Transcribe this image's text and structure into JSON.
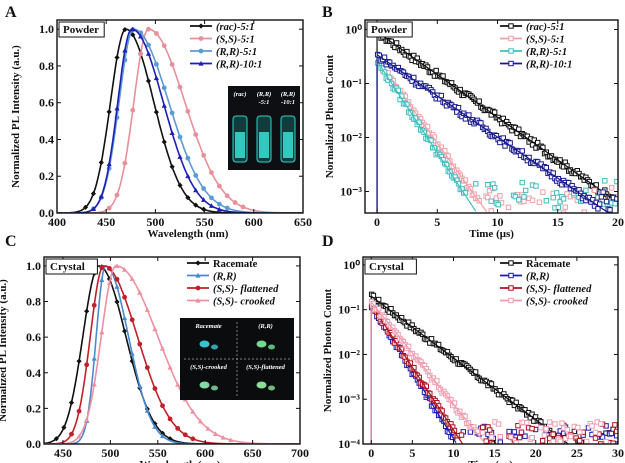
{
  "panels": [
    {
      "letter": "A",
      "tag": "Powder",
      "type": "line",
      "xlabel": "Wavelength (nm)",
      "ylabel": "Normalized PL Intensity (a.u.)",
      "xlim": [
        400,
        650
      ],
      "ylim": [
        0,
        1.05
      ],
      "xticks": [
        "400",
        "450",
        "500",
        "550",
        "600",
        "650"
      ],
      "yticks": [
        "0.0",
        "0.2",
        "0.4",
        "0.6",
        "0.8",
        "1.0"
      ],
      "yscale": "linear",
      "legend": "top-right",
      "series": [
        {
          "name": "(rac)-5:1",
          "color": "#111111",
          "marker": "diamond",
          "peak": 470,
          "wl": 22,
          "wr": 40
        },
        {
          "name": "(S,S)-5:1",
          "color": "#e8909a",
          "marker": "circle",
          "peak": 493,
          "wl": 21,
          "wr": 52
        },
        {
          "name": "(R,R)-5:1",
          "color": "#5b9bd5",
          "marker": "circle",
          "peak": 478,
          "wl": 21,
          "wr": 50
        },
        {
          "name": "(R,R)-10:1",
          "color": "#1f1fb4",
          "marker": "triangle",
          "peak": 476,
          "wl": 20,
          "wr": 45
        }
      ],
      "inset_labels": [
        "(rac)",
        "(R,R)\n-5:1",
        "(R,R)\n-10:1"
      ]
    },
    {
      "letter": "B",
      "tag": "Powder",
      "type": "line",
      "xlabel": "Time (μs)",
      "ylabel": "Normalized Photon Count",
      "xlim": [
        -1,
        20
      ],
      "ylim": [
        0.0004,
        1.5
      ],
      "xticks": [
        "0",
        "5",
        "10",
        "15",
        "20"
      ],
      "yticks": [
        "10⁰",
        "10⁻¹",
        "10⁻²",
        "10⁻³"
      ],
      "ytick_values": [
        1,
        0.1,
        0.01,
        0.001
      ],
      "yscale": "log",
      "legend": "top-right",
      "series": [
        {
          "name": "(rac)-5:1",
          "color": "#111111",
          "marker": "square-open",
          "tau": 2.75,
          "start": 0.9,
          "floor": 0.0005
        },
        {
          "name": "(S,S)-5:1",
          "color": "#f0a0a8",
          "marker": "square-open",
          "tau": 1.4,
          "start": 0.28,
          "floor": 0.0006
        },
        {
          "name": "(R,R)-5:1",
          "color": "#3fbfbf",
          "marker": "square-open",
          "tau": 1.28,
          "start": 0.26,
          "floor": 0.0008
        },
        {
          "name": "(R,R)-10:1",
          "color": "#1a1a90",
          "marker": "square-open",
          "tau": 2.85,
          "start": 0.34,
          "floor": 0.0005
        }
      ]
    },
    {
      "letter": "C",
      "tag": "Crystal",
      "type": "line",
      "xlabel": "Wavelength (nm)",
      "ylabel": "Normalized PL Intensity (a.u.)",
      "xlim": [
        430,
        700
      ],
      "ylim": [
        0,
        1.05
      ],
      "xticks": [
        "450",
        "500",
        "550",
        "600",
        "650",
        "700"
      ],
      "yticks": [
        "0.0",
        "0.2",
        "0.4",
        "0.6",
        "0.8",
        "1.0"
      ],
      "yscale": "linear",
      "legend": "top-right",
      "series": [
        {
          "name": "Racemate",
          "color": "#111111",
          "marker": "diamond",
          "peak": 488,
          "wl": 24,
          "wr": 40
        },
        {
          "name": "(R,R)",
          "color": "#4a8ad0",
          "marker": "triangle",
          "peak": 495,
          "wl": 14,
          "wr": 34
        },
        {
          "name": "(S,S)- flattened",
          "color": "#c0202a",
          "marker": "circle",
          "peak": 493,
          "wl": 20,
          "wr": 50
        },
        {
          "name": "(S,S)- crooked",
          "color": "#ef8fa0",
          "marker": "triangle",
          "peak": 506,
          "wl": 22,
          "wr": 62
        }
      ],
      "inset_labels": [
        "Racemate",
        "(R,R)",
        "(S,S)-crooked",
        "(S,S)-flattened"
      ]
    },
    {
      "letter": "D",
      "tag": "Crystal",
      "type": "line",
      "xlabel": "Time (μs)",
      "ylabel": "Normalized Photon Count",
      "xlim": [
        -1,
        30
      ],
      "ylim": [
        0.0001,
        1.5
      ],
      "xticks": [
        "0",
        "5",
        "10",
        "15",
        "20",
        "25",
        "30"
      ],
      "yticks": [
        "10⁰",
        "10⁻¹",
        "10⁻²",
        "10⁻³",
        "10⁻⁴"
      ],
      "ytick_values": [
        1,
        0.1,
        0.01,
        0.001,
        0.0001
      ],
      "yscale": "log",
      "legend": "top-right",
      "series": [
        {
          "name": "Racemate",
          "color": "#111111",
          "marker": "square-open",
          "tau": 3.15,
          "start": 0.2,
          "floor": 0.00012
        },
        {
          "name": "(R,R)",
          "color": "#1a1ab8",
          "marker": "square-open",
          "tau": 1.45,
          "start": 0.13,
          "floor": 0.00013
        },
        {
          "name": "(S,S)- flattened",
          "color": "#b01020",
          "marker": "square-open",
          "tau": 1.55,
          "start": 0.13,
          "floor": 0.00014
        },
        {
          "name": "(S,S)- crooked",
          "color": "#f09cb0",
          "marker": "square-open",
          "tau": 1.9,
          "start": 0.15,
          "floor": 0.00016
        }
      ]
    }
  ]
}
